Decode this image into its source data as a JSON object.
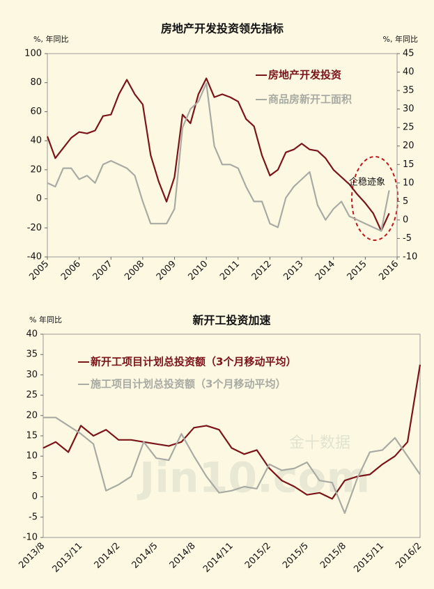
{
  "chart_data": [
    {
      "type": "line",
      "title": "房地产开发投资领先指标",
      "y_label": "%, 年同比",
      "y2_label": "%, 年同比",
      "x": [
        2005,
        2005.25,
        2005.5,
        2005.75,
        2006,
        2006.25,
        2006.5,
        2006.75,
        2007,
        2007.25,
        2007.5,
        2007.75,
        2008,
        2008.25,
        2008.5,
        2008.75,
        2009,
        2009.25,
        2009.5,
        2009.75,
        2010,
        2010.25,
        2010.5,
        2010.75,
        2011,
        2011.25,
        2011.5,
        2011.75,
        2012,
        2012.25,
        2012.5,
        2012.75,
        2013,
        2013.25,
        2013.5,
        2013.75,
        2014,
        2014.25,
        2014.5,
        2014.75,
        2015,
        2015.25,
        2015.5,
        2015.75,
        2016
      ],
      "xlim": [
        2005,
        2016
      ],
      "xticks": [
        2005,
        2006,
        2007,
        2008,
        2009,
        2010,
        2011,
        2012,
        2013,
        2014,
        2015,
        2016
      ],
      "ylim": [
        -40,
        100
      ],
      "yticks": [
        -40,
        -20,
        0,
        20,
        40,
        60,
        80,
        100
      ],
      "y2lim": [
        -10,
        45
      ],
      "y2ticks": [
        -10,
        -5,
        0,
        5,
        10,
        15,
        20,
        25,
        30,
        35,
        40,
        45
      ],
      "series": [
        {
          "name": "房地产开发投资",
          "color": "#7a1418",
          "values": [
            43,
            28,
            35,
            42,
            46,
            45,
            47,
            57,
            58,
            72,
            82,
            72,
            65,
            30,
            12,
            -2,
            15,
            58,
            52,
            72,
            83,
            70,
            72,
            70,
            67,
            55,
            50,
            30,
            16,
            20,
            32,
            34,
            38,
            34,
            33,
            28,
            20,
            15,
            10,
            3,
            -3,
            -10,
            -22,
            -10,
            null
          ]
        },
        {
          "name": "商品房新开工面积",
          "color": "#a9aba3",
          "axis": "y2",
          "values": [
            10,
            9,
            14,
            14,
            11,
            12,
            10,
            15,
            16,
            15,
            14,
            12,
            5,
            -1,
            -1,
            -1,
            3,
            25,
            30,
            32,
            37,
            20,
            15,
            15,
            14,
            9,
            5,
            5,
            -1,
            -2,
            6,
            9,
            11,
            13,
            4,
            0,
            3,
            5,
            1,
            0,
            -1,
            -2,
            -3,
            8,
            null
          ]
        }
      ],
      "annotation": "企稳迹象",
      "grid": false
    },
    {
      "type": "line",
      "title": "新开工投资加速",
      "y_label": "% 年同比",
      "categories": [
        "2013/8",
        null,
        null,
        "2013/11",
        null,
        null,
        "2014/2",
        null,
        null,
        "2014/5",
        null,
        null,
        "2014/8",
        null,
        null,
        "2014/11",
        null,
        null,
        "2015/2",
        null,
        null,
        "2015/5",
        null,
        null,
        "2015/8",
        null,
        null,
        "2015/11",
        null,
        null,
        "2016/2"
      ],
      "ylim": [
        -10,
        40
      ],
      "yticks": [
        -10,
        -5,
        0,
        5,
        10,
        15,
        20,
        25,
        30,
        35,
        40
      ],
      "series": [
        {
          "name": "新开工项目计划总投资额（3个月移动平均）",
          "color": "#7a1418",
          "values": [
            12,
            13.5,
            11,
            17.5,
            15,
            16.5,
            14,
            14,
            13.5,
            13,
            12.5,
            13.5,
            17,
            17.5,
            16.5,
            12,
            10.5,
            11.5,
            7,
            4,
            2.5,
            0.5,
            1,
            -0.5,
            4,
            5,
            5.5,
            8,
            10,
            13.5,
            32.5
          ]
        },
        {
          "name": "施工项目计划总投资额（3个月移动平均）",
          "color": "#a9aba3",
          "values": [
            19.5,
            19.5,
            17.5,
            15.5,
            13,
            1.5,
            3,
            5,
            13.5,
            9.5,
            9,
            15.5,
            10,
            5,
            1,
            1.5,
            2.5,
            2,
            8,
            6.5,
            7,
            8.5,
            4,
            3.5,
            -4,
            4.5,
            11,
            11.5,
            14.5,
            10,
            5.5
          ]
        }
      ],
      "watermark": "金十数据",
      "watermark2": "Jin10.com",
      "grid": false
    }
  ]
}
